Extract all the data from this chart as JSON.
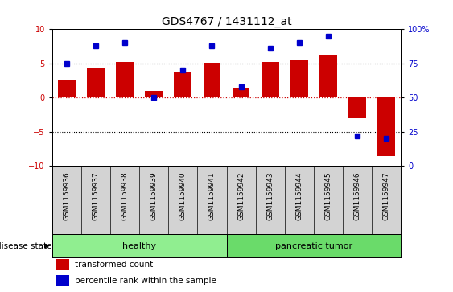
{
  "title": "GDS4767 / 1431112_at",
  "samples": [
    "GSM1159936",
    "GSM1159937",
    "GSM1159938",
    "GSM1159939",
    "GSM1159940",
    "GSM1159941",
    "GSM1159942",
    "GSM1159943",
    "GSM1159944",
    "GSM1159945",
    "GSM1159946",
    "GSM1159947"
  ],
  "transformed_count": [
    2.5,
    4.3,
    5.2,
    1.0,
    3.8,
    5.1,
    1.5,
    5.2,
    5.4,
    6.3,
    -3.0,
    -8.5
  ],
  "percentile_rank": [
    75,
    88,
    90,
    50,
    70,
    88,
    58,
    86,
    90,
    95,
    22,
    20
  ],
  "healthy_count": 6,
  "pancreatic_count": 6,
  "ylim_left": [
    -10,
    10
  ],
  "ylim_right": [
    0,
    100
  ],
  "yticks_left": [
    -10,
    -5,
    0,
    5,
    10
  ],
  "yticks_right": [
    0,
    25,
    50,
    75,
    100
  ],
  "bar_color": "#cc0000",
  "dot_color": "#0000cc",
  "healthy_color": "#90ee90",
  "tumor_color": "#6adb6a",
  "bg_color": "#ffffff",
  "tick_area_color": "#d3d3d3",
  "hline_0_color": "#cc0000",
  "hline_5_color": "#000000",
  "legend_bar_label": "transformed count",
  "legend_dot_label": "percentile rank within the sample",
  "disease_label": "disease state",
  "healthy_label": "healthy",
  "tumor_label": "pancreatic tumor",
  "title_fontsize": 10,
  "tick_fontsize": 7,
  "label_fontsize": 8
}
